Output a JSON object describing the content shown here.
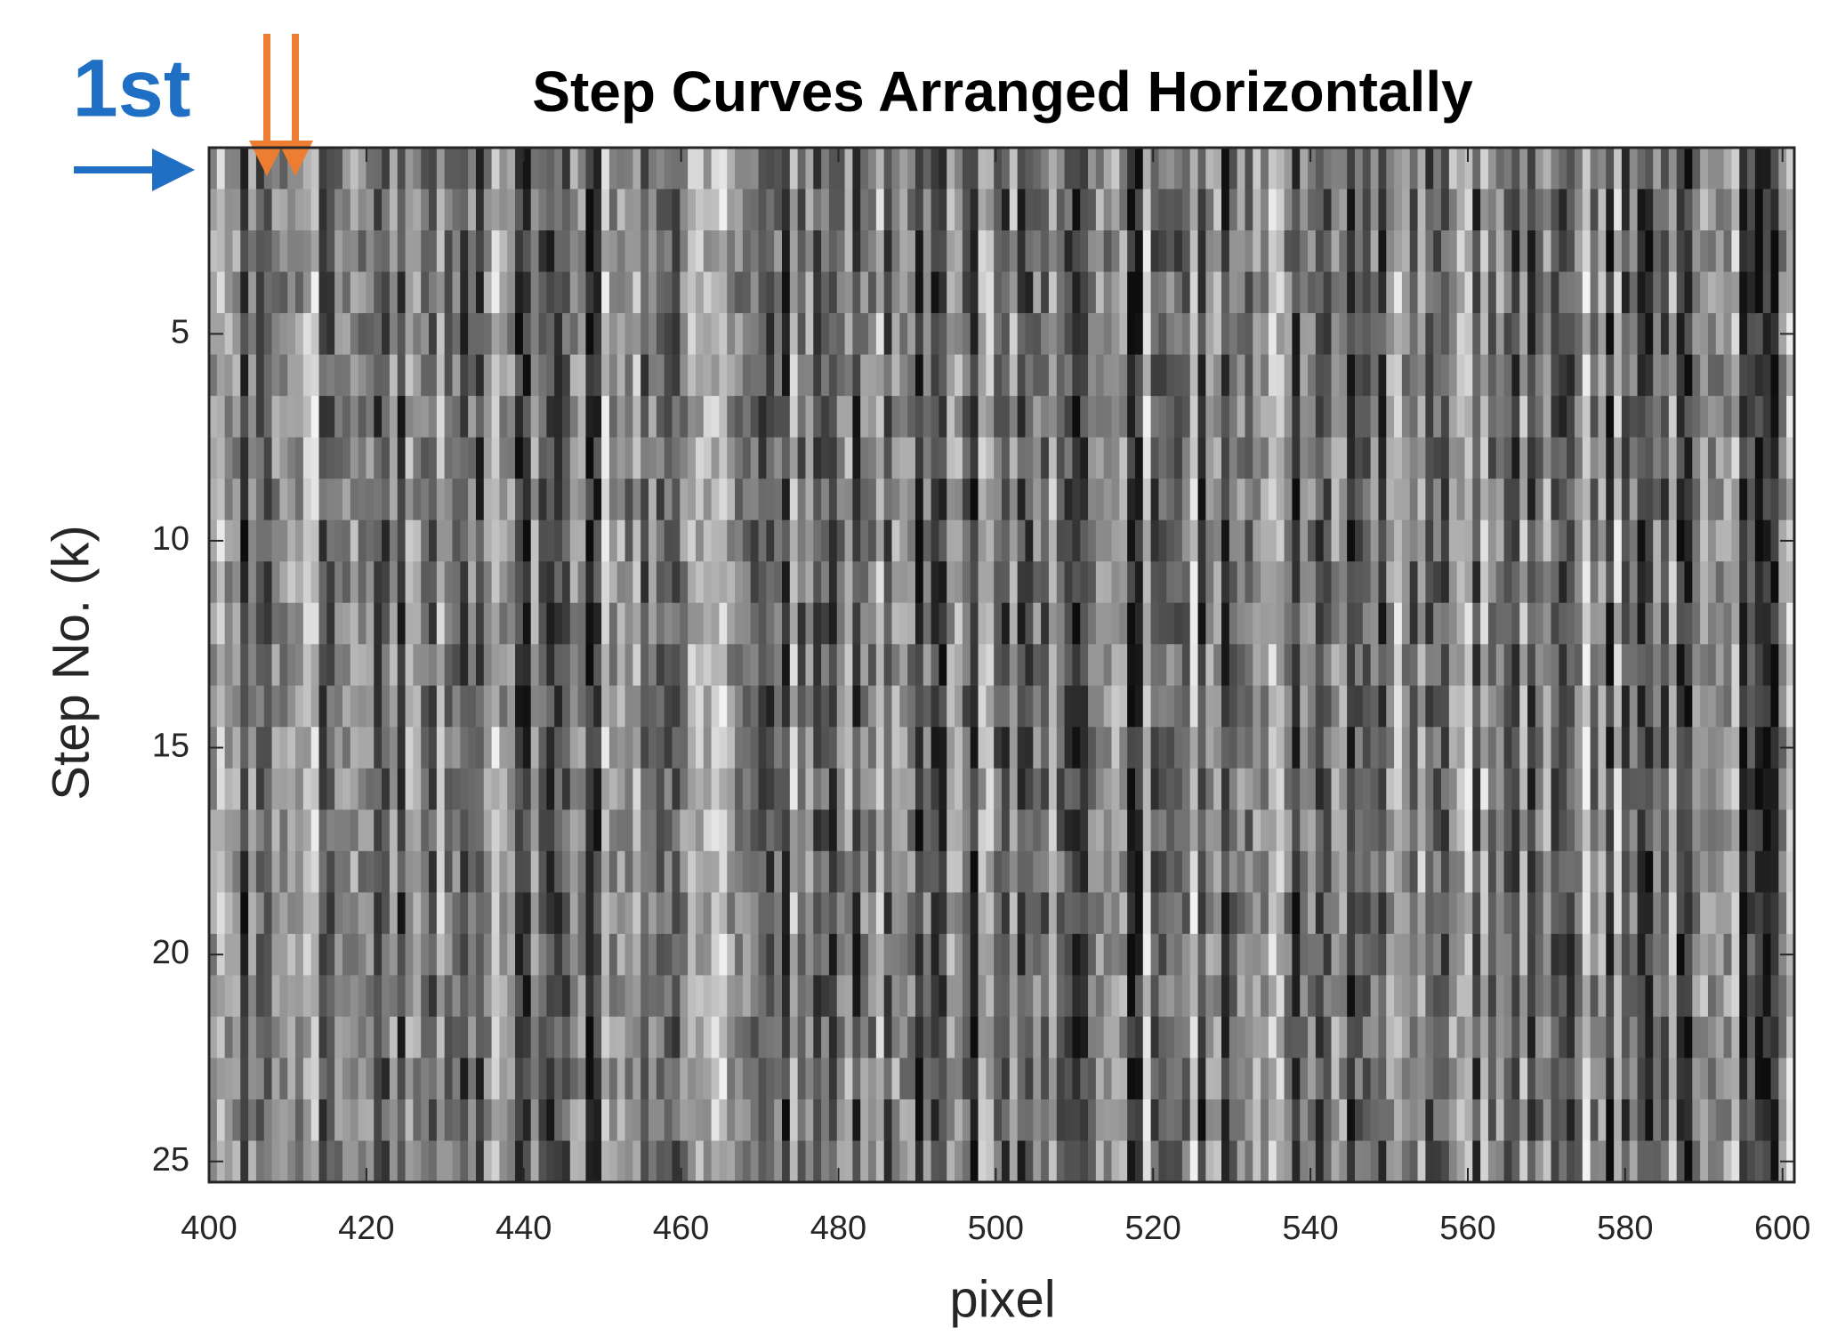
{
  "chart_data": {
    "type": "heatmap",
    "title": "Step Curves Arranged Horizontally",
    "x_label": "pixel",
    "y_label": "Step No. (k)",
    "annotation": "1st",
    "xlim": [
      400,
      601.5
    ],
    "xticks": [
      400,
      420,
      440,
      460,
      480,
      500,
      520,
      540,
      560,
      580,
      600
    ],
    "ylim": [
      0.5,
      25.5
    ],
    "yticks": [
      5,
      10,
      15,
      20,
      25
    ],
    "y_reversed": true,
    "colormap": "gray"
  }
}
